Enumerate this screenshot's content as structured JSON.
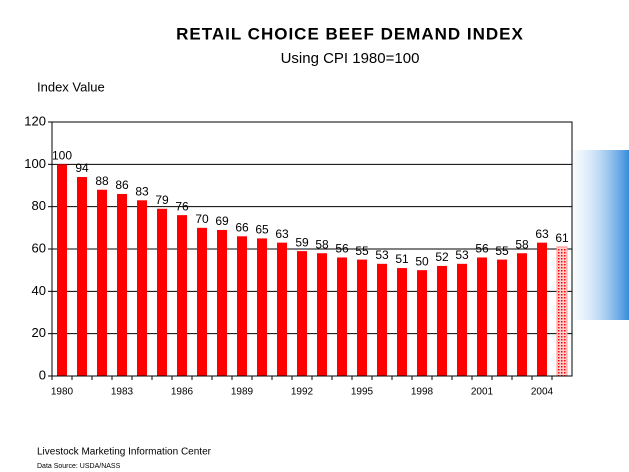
{
  "chart_data": {
    "type": "bar",
    "title": "RETAIL CHOICE BEEF DEMAND INDEX",
    "subtitle": "Using CPI 1980=100",
    "y_label": "Index Value",
    "source_org": "Livestock Marketing Information Center",
    "source": "Data Source:  USDA/NASS",
    "categories": [
      "1980",
      null,
      null,
      "1983",
      null,
      null,
      "1986",
      null,
      null,
      "1989",
      null,
      null,
      "1992",
      null,
      null,
      "1995",
      null,
      null,
      "1998",
      null,
      null,
      "2001",
      null,
      null,
      "2004",
      null
    ],
    "values": [
      100,
      94,
      88,
      86,
      83,
      79,
      76,
      70,
      69,
      66,
      65,
      63,
      59,
      58,
      56,
      55,
      53,
      51,
      50,
      52,
      53,
      56,
      55,
      58,
      63,
      61
    ],
    "color": "#ff0000",
    "last_bar_color": "#ff9999",
    "ylim": [
      0,
      120
    ],
    "yticks": [
      0,
      20,
      40,
      60,
      80,
      100,
      120
    ],
    "grid": true
  }
}
